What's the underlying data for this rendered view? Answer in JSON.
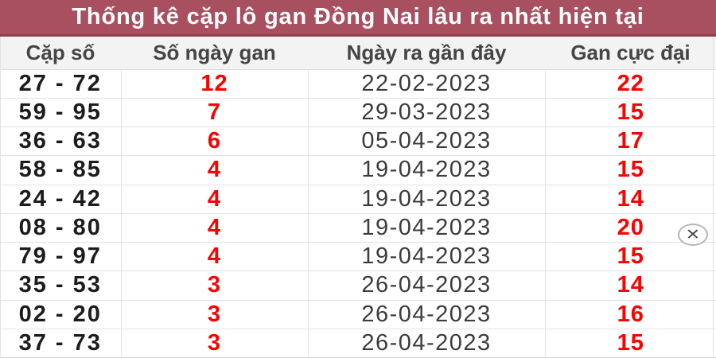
{
  "title": "Thống kê cặp lô gan Đồng Nai lâu ra nhất hiện tại",
  "table": {
    "columns": [
      "Cặp số",
      "Số ngày gan",
      "Ngày ra gần đây",
      "Gan cực đại"
    ],
    "rows": [
      {
        "pair": "27 - 72",
        "days": "12",
        "last_date": "22-02-2023",
        "max_gan": "22"
      },
      {
        "pair": "59 - 95",
        "days": "7",
        "last_date": "29-03-2023",
        "max_gan": "15"
      },
      {
        "pair": "36 - 63",
        "days": "6",
        "last_date": "05-04-2023",
        "max_gan": "17"
      },
      {
        "pair": "58 - 85",
        "days": "4",
        "last_date": "19-04-2023",
        "max_gan": "15"
      },
      {
        "pair": "24 - 42",
        "days": "4",
        "last_date": "19-04-2023",
        "max_gan": "14"
      },
      {
        "pair": "08 - 80",
        "days": "4",
        "last_date": "19-04-2023",
        "max_gan": "20"
      },
      {
        "pair": "79 - 97",
        "days": "4",
        "last_date": "19-04-2023",
        "max_gan": "15"
      },
      {
        "pair": "35 - 53",
        "days": "3",
        "last_date": "26-04-2023",
        "max_gan": "14"
      },
      {
        "pair": "02 - 20",
        "days": "3",
        "last_date": "26-04-2023",
        "max_gan": "16"
      },
      {
        "pair": "37 - 73",
        "days": "3",
        "last_date": "26-04-2023",
        "max_gan": "15"
      }
    ]
  },
  "close_button": {
    "glyph": "✕"
  },
  "colors": {
    "title_bg": "#a84f60",
    "title_border": "#8e3c4e",
    "title_text": "#ffffff",
    "header_text": "#454545",
    "pair_text": "#1c1c1c",
    "date_text": "#3c3c3c",
    "highlight_red": "#ff0000",
    "row_border": "#e2e2e2",
    "header_bg": "#f3f3f3"
  }
}
